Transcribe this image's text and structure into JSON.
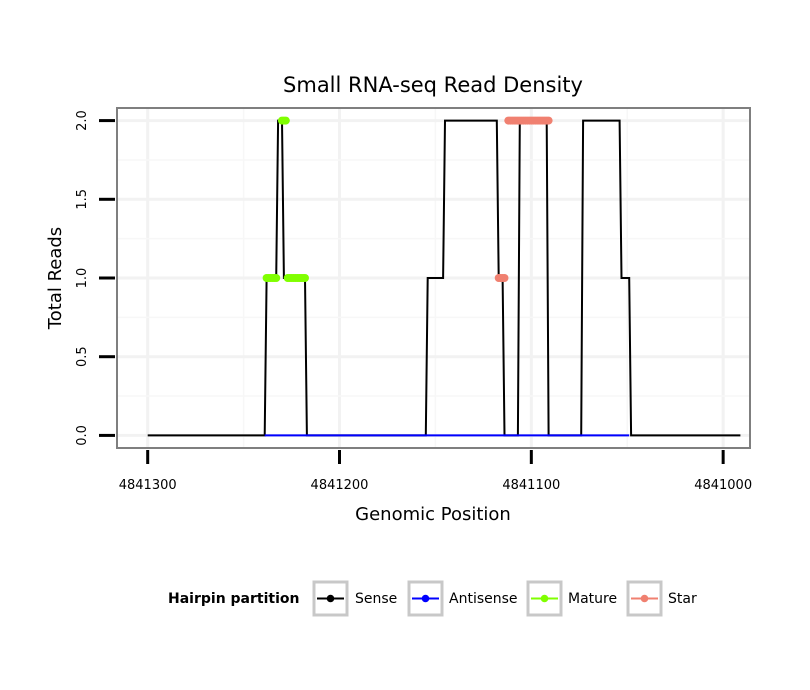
{
  "chart_data": {
    "type": "line",
    "title": "Small RNA-seq Read Density",
    "xlabel": "Genomic Position",
    "ylabel": "Total Reads",
    "x_reversed": true,
    "xlim": [
      4841316,
      4840986
    ],
    "ylim": [
      -0.08,
      2.08
    ],
    "x_ticks": [
      4841300,
      4841200,
      4841100,
      4841000
    ],
    "x_tick_labels": [
      "4841300",
      "4841200",
      "4841100",
      "4841000"
    ],
    "y_ticks": [
      0,
      0.5,
      1,
      1.5,
      2
    ],
    "y_tick_labels": [
      "0.0",
      "0.5",
      "1.0",
      "1.5",
      "2.0"
    ],
    "grid": true,
    "legend": {
      "title": "Hairpin partition",
      "position": "bottom",
      "entries": [
        "Sense",
        "Antisense",
        "Mature",
        "Star"
      ]
    },
    "series": [
      {
        "name": "Sense",
        "color": "#000000",
        "style": "line",
        "x": [
          4841300,
          4841239,
          4841238,
          4841233,
          4841232,
          4841230,
          4841229,
          4841227,
          4841226,
          4841218,
          4841217,
          4841198,
          4841197,
          4841155,
          4841154,
          4841146,
          4841145,
          4841136,
          4841135,
          4841118,
          4841117,
          4841115,
          4841114,
          4841107,
          4841106,
          4841092,
          4841091,
          4841077,
          4841076,
          4841074,
          4841073,
          4841056,
          4841055,
          4841054,
          4841053,
          4841049,
          4841048,
          4841040,
          4841039,
          4840991
        ],
        "values": [
          0,
          0,
          1,
          1,
          2,
          2,
          1,
          1,
          1,
          1,
          0,
          0,
          0,
          0,
          1,
          1,
          2,
          2,
          2,
          2,
          1,
          1,
          0,
          0,
          2,
          2,
          0,
          0,
          0,
          0,
          2,
          2,
          2,
          2,
          1,
          1,
          0,
          0,
          0,
          0
        ]
      },
      {
        "name": "Antisense",
        "color": "#0000ff",
        "style": "line",
        "x": [
          4841239,
          4841197,
          4841155,
          4841114,
          4841077,
          4841049
        ],
        "values": [
          0,
          0,
          0,
          0,
          0,
          0
        ]
      },
      {
        "name": "Mature",
        "color": "#80ff00",
        "style": "points",
        "x": [
          4841238,
          4841237,
          4841236,
          4841235,
          4841234,
          4841233,
          4841230,
          4841229,
          4841228,
          4841227,
          4841226,
          4841225,
          4841224,
          4841223,
          4841222,
          4841221,
          4841220,
          4841219,
          4841218
        ],
        "values": [
          1,
          1,
          1,
          1,
          1,
          1,
          2,
          2,
          2,
          1,
          1,
          1,
          1,
          1,
          1,
          1,
          1,
          1,
          1
        ]
      },
      {
        "name": "Star",
        "color": "#f08070",
        "style": "points",
        "x": [
          4841117,
          4841116,
          4841115,
          4841114,
          4841112,
          4841111,
          4841110,
          4841109,
          4841108,
          4841107,
          4841106,
          4841105,
          4841104,
          4841103,
          4841102,
          4841101,
          4841100,
          4841099,
          4841098,
          4841097,
          4841096,
          4841095,
          4841094,
          4841093,
          4841092,
          4841091
        ],
        "values": [
          1,
          1,
          1,
          1,
          2,
          2,
          2,
          2,
          2,
          2,
          2,
          2,
          2,
          2,
          2,
          2,
          2,
          2,
          2,
          2,
          2,
          2,
          2,
          2,
          2,
          2
        ]
      }
    ]
  }
}
